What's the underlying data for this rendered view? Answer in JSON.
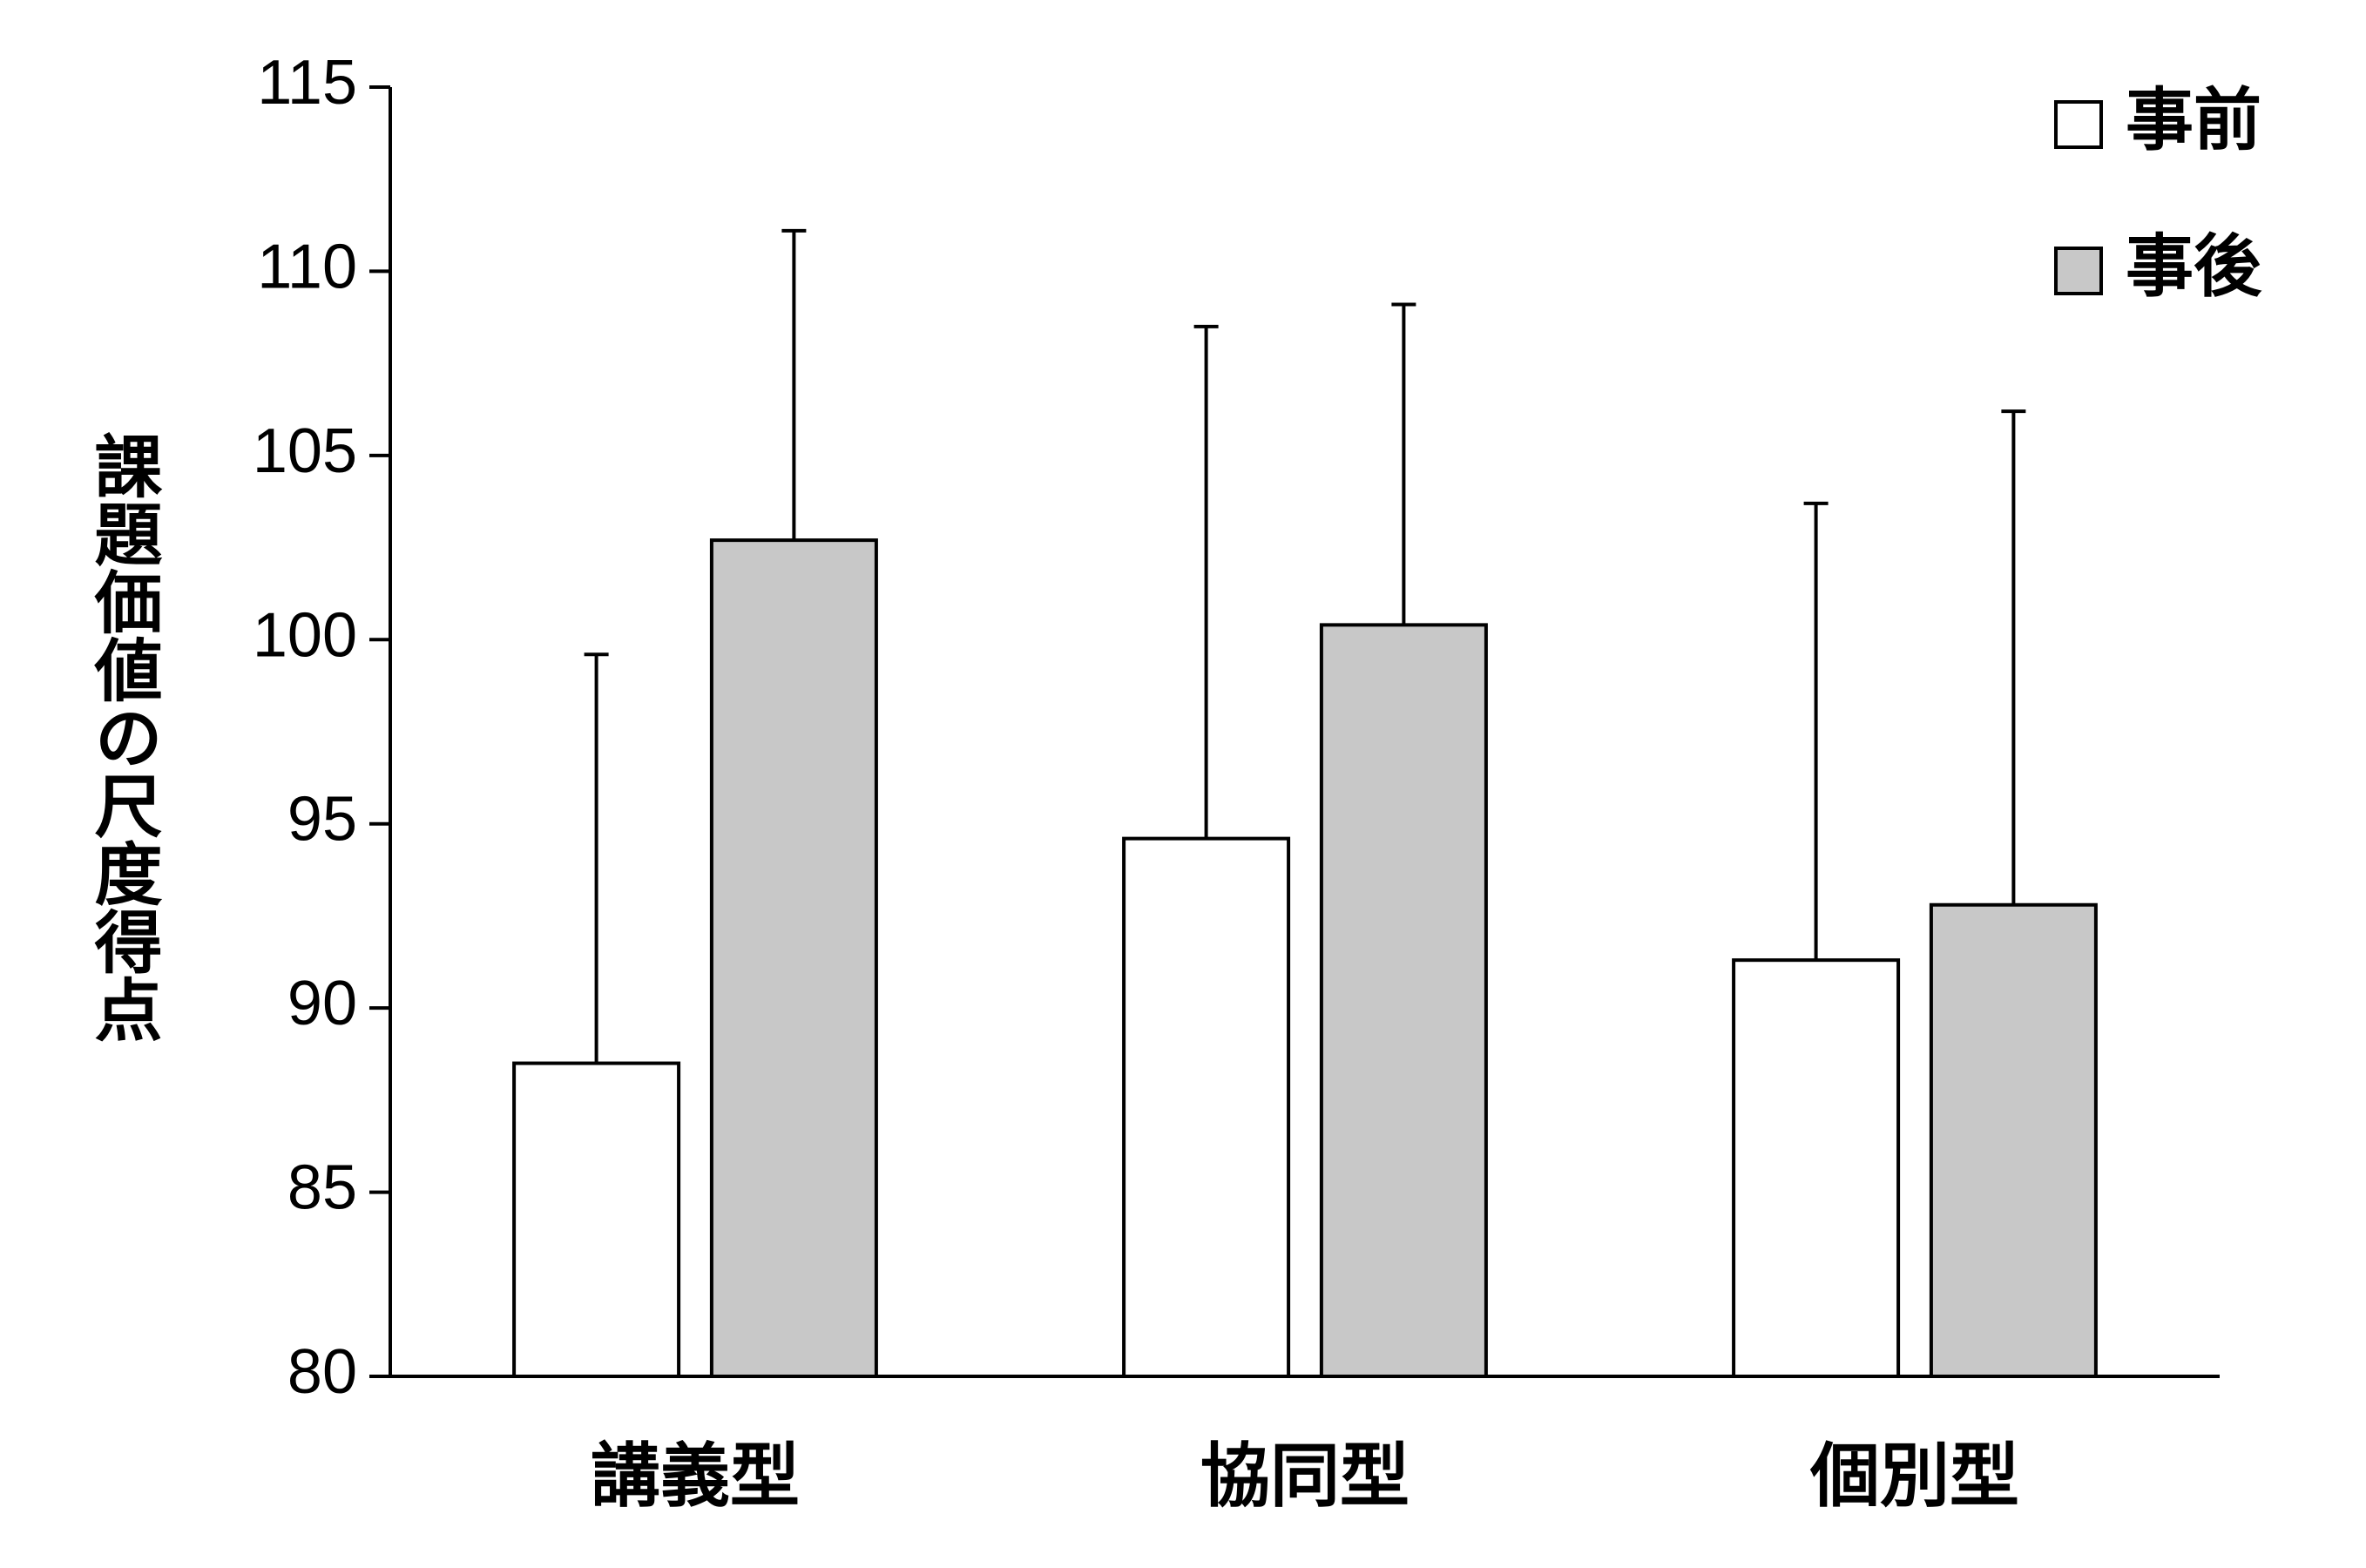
{
  "chart_data": {
    "type": "bar",
    "y_label": "課題価値の尺度得点",
    "categories": [
      "講義型",
      "協同型",
      "個別型"
    ],
    "series": [
      {
        "name": "事前",
        "color": "#ffffff",
        "values": [
          88.5,
          94.6,
          91.3
        ],
        "errors": [
          11.1,
          13.9,
          12.4
        ]
      },
      {
        "name": "事後",
        "color": "#c8c8c8",
        "values": [
          102.7,
          100.4,
          92.8
        ],
        "errors": [
          8.4,
          8.7,
          13.4
        ]
      }
    ],
    "ylim": [
      80,
      115
    ],
    "yticks": [
      80,
      85,
      90,
      95,
      100,
      105,
      110,
      115
    ],
    "grid": false,
    "legend": "top-right"
  }
}
